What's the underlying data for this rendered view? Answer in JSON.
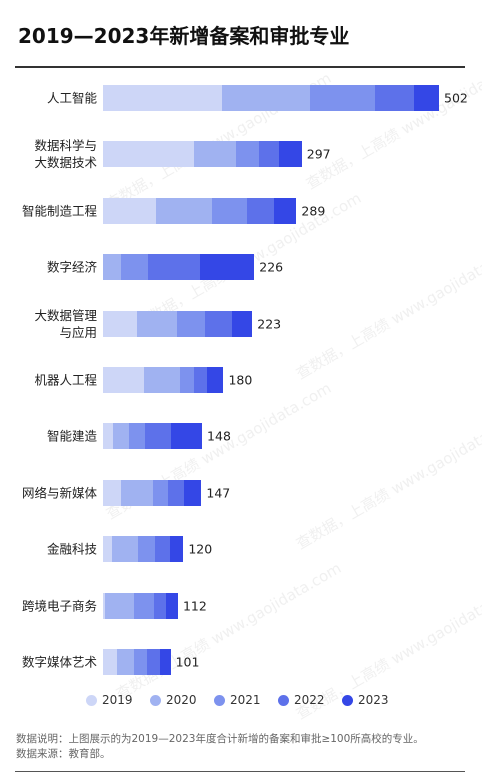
{
  "chart_data": {
    "type": "stacked-barh",
    "title": "2019—2023年新增备案和审批专业",
    "categories": [
      "人工智能",
      "数据科学与\n大数据技术",
      "智能制造工程",
      "数字经济",
      "大数据管理\n与应用",
      "机器人工程",
      "智能建造",
      "网络与新媒体",
      "金融科技",
      "跨境电子商务",
      "数字媒体艺术"
    ],
    "series": [
      {
        "name": "2019",
        "color": "#cdd6f7",
        "values": [
          178,
          136,
          79,
          0,
          51,
          61,
          15,
          27,
          13,
          3,
          21
        ]
      },
      {
        "name": "2020",
        "color": "#a0b2f1",
        "values": [
          131,
          63,
          84,
          27,
          60,
          54,
          24,
          48,
          40,
          43,
          26
        ]
      },
      {
        "name": "2021",
        "color": "#7d92ee",
        "values": [
          97,
          34,
          52,
          40,
          42,
          21,
          24,
          22,
          25,
          30,
          19
        ]
      },
      {
        "name": "2022",
        "color": "#5d71ea",
        "values": [
          58,
          30,
          40,
          78,
          39,
          19,
          39,
          24,
          22,
          18,
          19
        ]
      },
      {
        "name": "2023",
        "color": "#3447e6",
        "values": [
          38,
          34,
          34,
          81,
          31,
          25,
          46,
          26,
          20,
          18,
          16
        ]
      }
    ],
    "totals": [
      502,
      297,
      289,
      226,
      223,
      180,
      148,
      147,
      120,
      112,
      101
    ],
    "xlim": [
      0,
      502
    ],
    "notes": [
      "数据说明：上图展示的为2019—2023年度合计新增的备案和审批≥100所高校的专业。",
      "数据来源：教育部。"
    ],
    "watermark": "查数据，上高绩 www.gaojidata.com"
  }
}
